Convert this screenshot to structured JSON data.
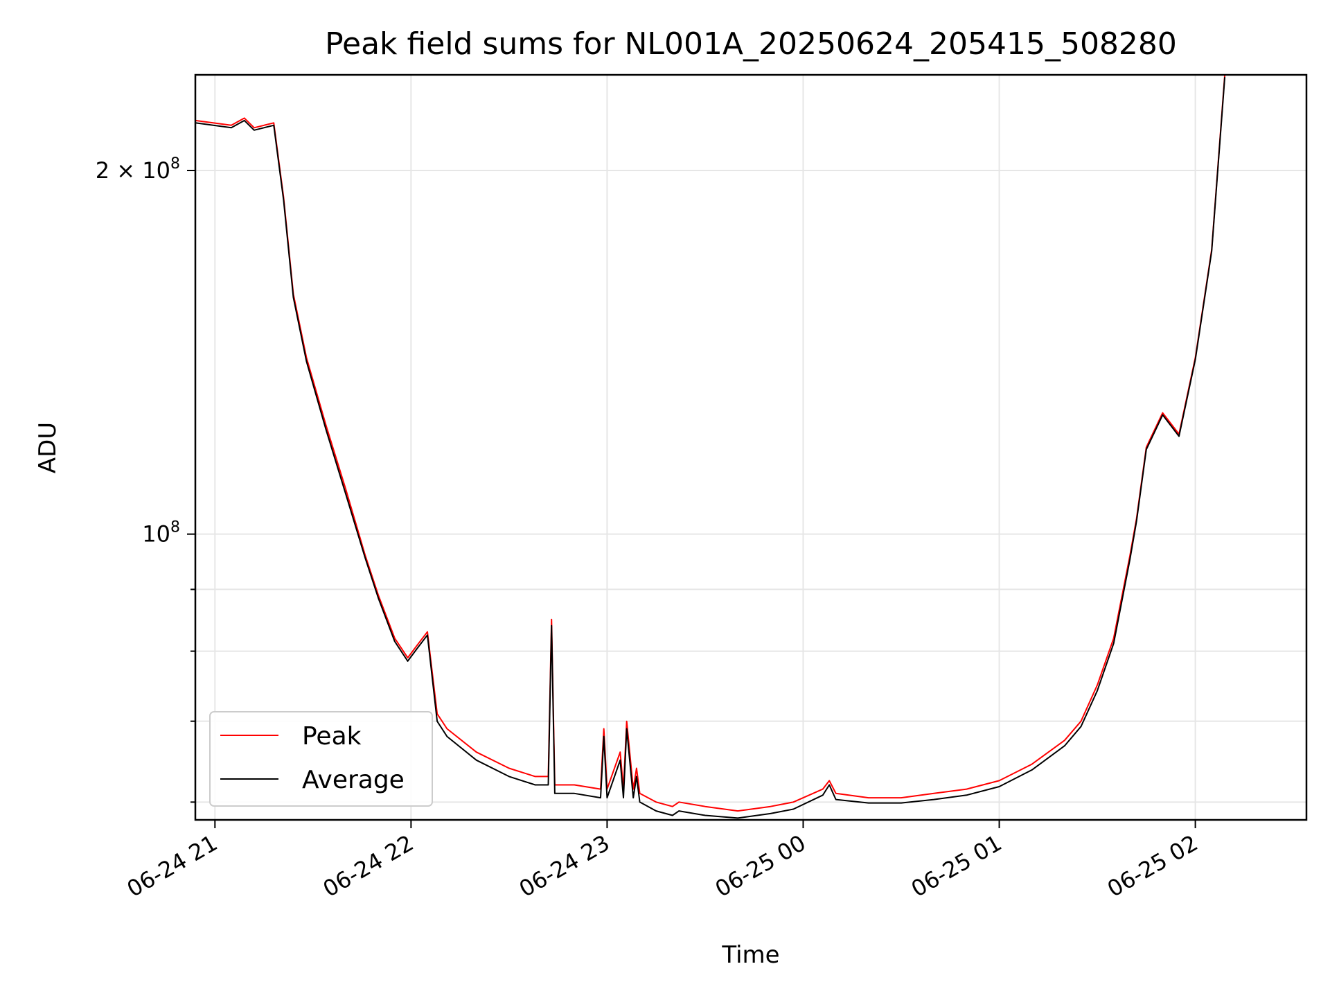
{
  "chart_data": {
    "type": "line",
    "title": "Peak field sums for NL001A_20250624_205415_508280",
    "xlabel": "Time",
    "ylabel": "ADU",
    "yscale": "log",
    "ylim": [
      58000000,
      240000000
    ],
    "xlim": [
      "2025-06-24 20:54",
      "2025-06-25 02:34"
    ],
    "grid": true,
    "legend_position": "lower-left",
    "x_ticks": [
      {
        "value": "2025-06-24 21:00",
        "label": "06-24 21"
      },
      {
        "value": "2025-06-24 22:00",
        "label": "06-24 22"
      },
      {
        "value": "2025-06-24 23:00",
        "label": "06-24 23"
      },
      {
        "value": "2025-06-25 00:00",
        "label": "06-25 00"
      },
      {
        "value": "2025-06-25 01:00",
        "label": "06-25 01"
      },
      {
        "value": "2025-06-25 02:00",
        "label": "06-25 02"
      }
    ],
    "y_major_ticks": [
      {
        "value": 100000000,
        "label_base": "10",
        "label_exp": "8"
      },
      {
        "value": 200000000,
        "label_base": "2 × 10",
        "label_exp": "8"
      }
    ],
    "y_minor_ticks": [
      60000000,
      70000000,
      80000000,
      90000000
    ],
    "x": [
      "2025-06-24 20:54",
      "2025-06-24 21:05",
      "2025-06-24 21:09",
      "2025-06-24 21:12",
      "2025-06-24 21:15",
      "2025-06-24 21:18",
      "2025-06-24 21:21",
      "2025-06-24 21:24",
      "2025-06-24 21:28",
      "2025-06-24 21:34",
      "2025-06-24 21:40",
      "2025-06-24 21:46",
      "2025-06-24 21:50",
      "2025-06-24 21:55",
      "2025-06-24 21:59",
      "2025-06-24 22:02",
      "2025-06-24 22:05",
      "2025-06-24 22:08",
      "2025-06-24 22:11",
      "2025-06-24 22:20",
      "2025-06-24 22:30",
      "2025-06-24 22:38",
      "2025-06-24 22:42",
      "2025-06-24 22:43",
      "2025-06-24 22:44",
      "2025-06-24 22:50",
      "2025-06-24 22:58",
      "2025-06-24 22:59",
      "2025-06-24 23:00",
      "2025-06-24 23:04",
      "2025-06-24 23:05",
      "2025-06-24 23:06",
      "2025-06-24 23:08",
      "2025-06-24 23:09",
      "2025-06-24 23:10",
      "2025-06-24 23:15",
      "2025-06-24 23:20",
      "2025-06-24 23:22",
      "2025-06-24 23:30",
      "2025-06-24 23:40",
      "2025-06-24 23:50",
      "2025-06-24 23:57",
      "2025-06-25 00:06",
      "2025-06-25 00:08",
      "2025-06-25 00:10",
      "2025-06-25 00:20",
      "2025-06-25 00:30",
      "2025-06-25 00:40",
      "2025-06-25 00:50",
      "2025-06-25 01:00",
      "2025-06-25 01:10",
      "2025-06-25 01:20",
      "2025-06-25 01:25",
      "2025-06-25 01:30",
      "2025-06-25 01:35",
      "2025-06-25 01:40",
      "2025-06-25 01:42",
      "2025-06-25 01:45",
      "2025-06-25 01:50",
      "2025-06-25 01:55",
      "2025-06-25 02:00",
      "2025-06-25 02:05",
      "2025-06-25 02:09"
    ],
    "series": [
      {
        "name": "Peak",
        "color": "#ff0000",
        "values": [
          220000000,
          218000000,
          221000000,
          217000000,
          218000000,
          219000000,
          190000000,
          158000000,
          140000000,
          123000000,
          109000000,
          96000000,
          89000000,
          82000000,
          79000000,
          81000000,
          83000000,
          71000000,
          69000000,
          66000000,
          64000000,
          63000000,
          63000000,
          85000000,
          62000000,
          62000000,
          61500000,
          69000000,
          61500000,
          66000000,
          61500000,
          70000000,
          61500000,
          64000000,
          61000000,
          60000000,
          59500000,
          60000000,
          59500000,
          59000000,
          59500000,
          60000000,
          61500000,
          62500000,
          61000000,
          60500000,
          60500000,
          61000000,
          61500000,
          62500000,
          64500000,
          67500000,
          70000000,
          75000000,
          82000000,
          96000000,
          103000000,
          118000000,
          126000000,
          121000000,
          140000000,
          172000000,
          240000000
        ]
      },
      {
        "name": "Average",
        "color": "#000000",
        "values": [
          219000000,
          217000000,
          220000000,
          216000000,
          217000000,
          218000000,
          189000000,
          157000000,
          139000000,
          122000000,
          108000000,
          95500000,
          88500000,
          81500000,
          78500000,
          80500000,
          82500000,
          70000000,
          68000000,
          65000000,
          63000000,
          62000000,
          62000000,
          84000000,
          61000000,
          61000000,
          60500000,
          68000000,
          60500000,
          65000000,
          60500000,
          69000000,
          60500000,
          63000000,
          60000000,
          59000000,
          58500000,
          59000000,
          58500000,
          58200000,
          58700000,
          59200000,
          60800000,
          62000000,
          60300000,
          59900000,
          59900000,
          60300000,
          60800000,
          61800000,
          63800000,
          66800000,
          69300000,
          74200000,
          81200000,
          95300000,
          102500000,
          117500000,
          125500000,
          120500000,
          139500000,
          171500000,
          239000000
        ]
      }
    ]
  }
}
